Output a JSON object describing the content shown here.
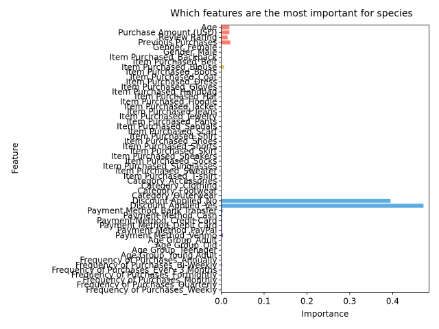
{
  "chart_data": {
    "type": "bar",
    "orientation": "horizontal",
    "title": "Which features are the most important for species",
    "xlabel": "Importance",
    "ylabel": "Feature",
    "xlim": [
      0,
      0.485
    ],
    "xticks": [
      "0.0",
      "0.1",
      "0.2",
      "0.3",
      "0.4"
    ],
    "grid": false,
    "legend": "none",
    "palette_colors": [
      "#fa8072",
      "#5dade2"
    ],
    "categories": [
      "Age",
      "Purchase Amount (USD)",
      "Review Rating",
      "Previous Purchases",
      "Gender_Female",
      "Gender_Male",
      "Item Purchased_Backpack",
      "Item Purchased_Belt",
      "Item Purchased_Blouse",
      "Item Purchased_Boots",
      "Item Purchased_Coat",
      "Item Purchased_Dress",
      "Item Purchased_Gloves",
      "Item Purchased_Handbag",
      "Item Purchased_Hat",
      "Item Purchased_Hoodie",
      "Item Purchased_Jacket",
      "Item Purchased_Jeans",
      "Item Purchased_Jewelry",
      "Item Purchased_Pants",
      "Item Purchased_Sandals",
      "Item Purchased_Scarf",
      "Item Purchased_Shirt",
      "Item Purchased_Shoes",
      "Item Purchased_Shorts",
      "Item Purchased_Skirt",
      "Item Purchased_Sneakers",
      "Item Purchased_Socks",
      "Item Purchased_Sunglasses",
      "Item Purchased_Sweater",
      "Item Purchased_T-shirt",
      "Category_Accessories",
      "Category_Clothing",
      "Category_Footwear",
      "Category_Outerwear",
      "Discount Applied_No",
      "Discount Applied_Yes",
      "Payment Method_Bank Transfer",
      "Payment Method_Cash",
      "Payment Method_Credit Card",
      "Payment Method_Debit Card",
      "Payment Method_PayPal",
      "Payment Method_Venmo",
      "Age Group_Adult",
      "Age Group_Old",
      "Age Group_Teenager",
      "Age Group_Young Adult",
      "Frequency of Purchases_Annually",
      "Frequency of Purchases_Bi-Weekly",
      "Frequency of Purchases_Every 3 Months",
      "Frequency of Purchases_Fortnightly",
      "Frequency of Purchases_Monthly",
      "Frequency of Purchases_Quarterly",
      "Frequency of Purchases_Weekly"
    ],
    "values": [
      0.019,
      0.019,
      0.015,
      0.021,
      0.0002,
      0.0002,
      0.0005,
      0.0005,
      0.007,
      0.0005,
      0.0005,
      0.0005,
      0.0005,
      0.0005,
      0.0005,
      0.0005,
      0.0005,
      0.0005,
      0.0005,
      0.0005,
      0.001,
      0.0005,
      0.0005,
      0.0005,
      0.0005,
      0.0005,
      0.0005,
      0.0005,
      0.0005,
      0.0005,
      0.0005,
      0.0005,
      0.0005,
      0.0005,
      0.0005,
      0.395,
      0.472,
      0.003,
      0.002,
      0.002,
      0.002,
      0.002,
      0.004,
      0.0005,
      0.0005,
      0.0005,
      0.0005,
      0.0008,
      0.002,
      0.0008,
      0.0005,
      0.0005,
      0.0005,
      0.0005
    ]
  }
}
